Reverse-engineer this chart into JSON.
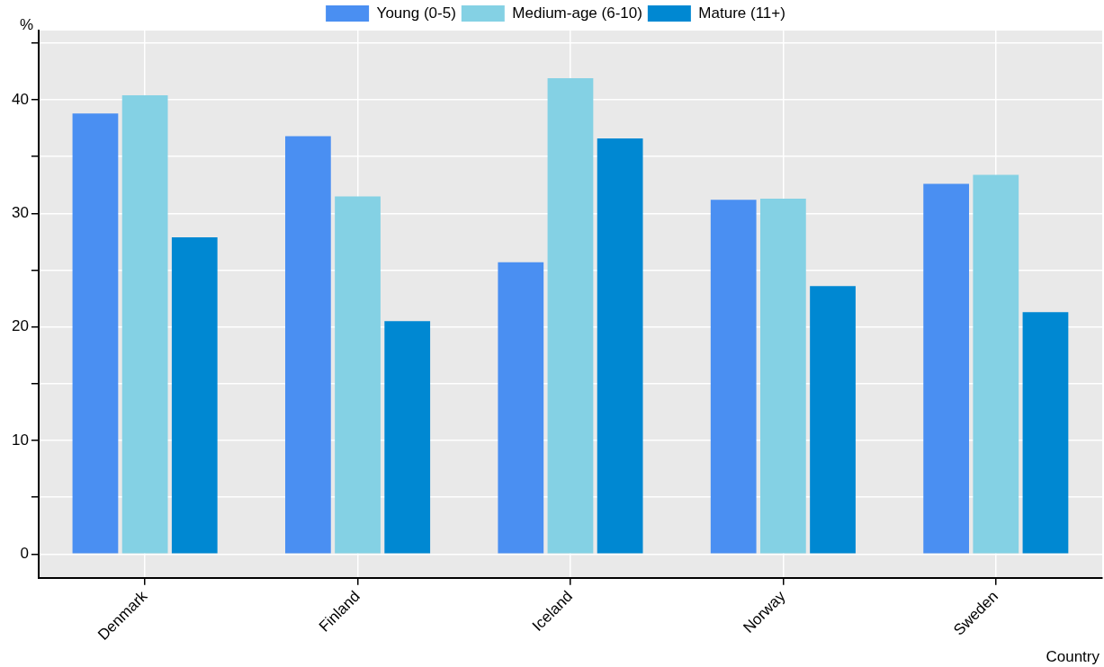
{
  "chart_data": {
    "type": "bar",
    "xlabel": "Country",
    "ylabel": "%",
    "categories": [
      "Denmark",
      "Finland",
      "Iceland",
      "Norway",
      "Sweden"
    ],
    "series": [
      {
        "name": "Young (0-5)",
        "color": "#4a8ff2",
        "values": [
          38.8,
          36.8,
          25.7,
          31.2,
          32.6
        ]
      },
      {
        "name": "Medium-age (6-10)",
        "color": "#84d1e4",
        "values": [
          40.4,
          31.5,
          41.9,
          31.3,
          33.4
        ]
      },
      {
        "name": "Mature (11+)",
        "color": "#0088d2",
        "values": [
          27.9,
          20.5,
          36.6,
          23.6,
          21.3
        ]
      }
    ],
    "ylim": [
      -2.1,
      46.1
    ],
    "yticks": [
      0,
      {
        "value": 5,
        "label": null
      },
      10,
      {
        "value": 15,
        "label": null
      },
      20,
      {
        "value": 25,
        "label": null
      },
      30,
      {
        "value": 35,
        "label": null
      },
      40,
      {
        "value": 45,
        "label": null
      }
    ],
    "grid": true,
    "legend": "top"
  }
}
